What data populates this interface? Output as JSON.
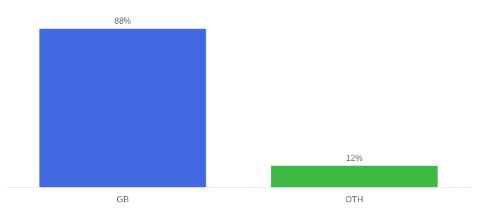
{
  "chart_data": {
    "type": "bar",
    "categories": [
      "GB",
      "OTH"
    ],
    "values": [
      88,
      12
    ],
    "value_labels": [
      "88%",
      "12%"
    ],
    "colors": [
      "#4169e1",
      "#3cb843"
    ],
    "ylim": [
      0,
      100
    ],
    "grid": false,
    "data_labels": true,
    "tick_labels": "x"
  }
}
